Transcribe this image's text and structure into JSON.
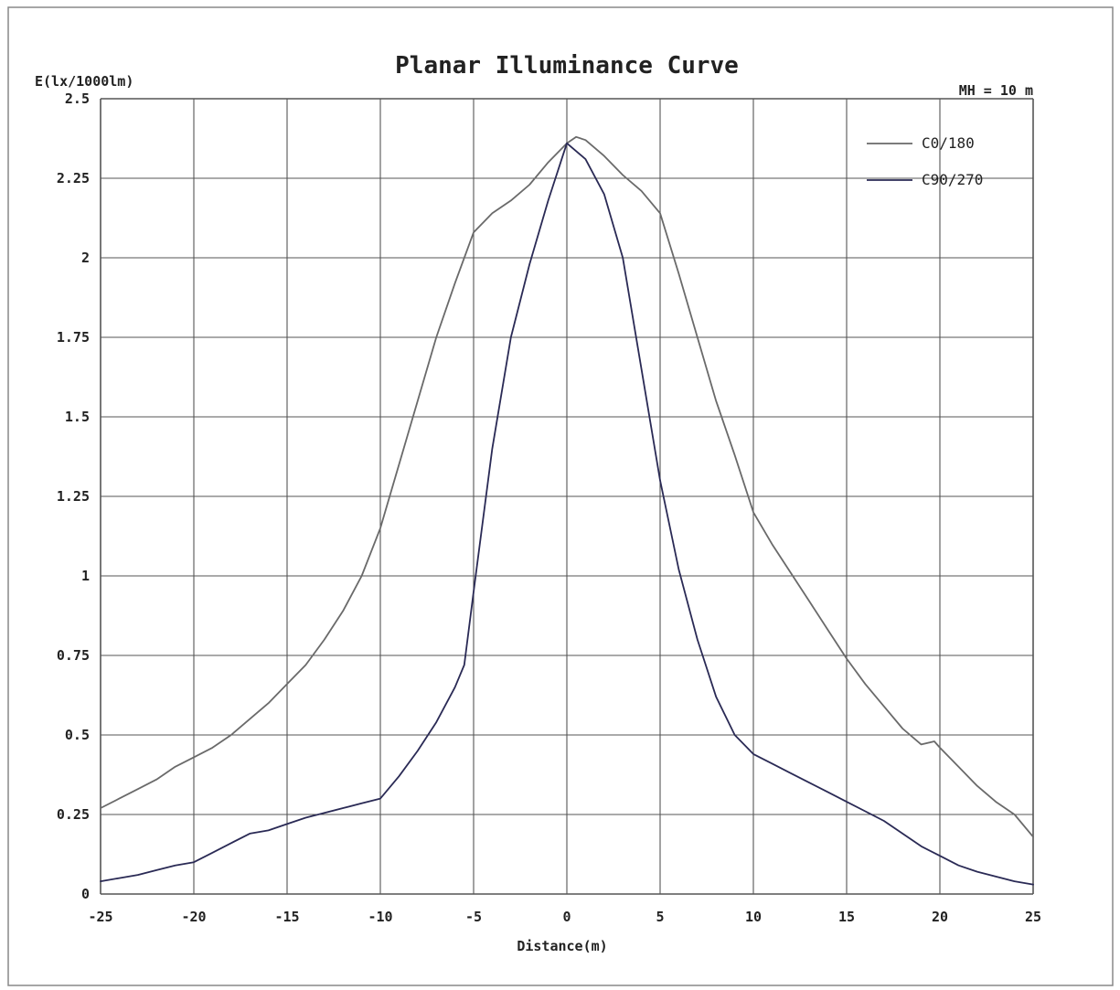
{
  "chart_data": {
    "type": "line",
    "title": "Planar Illuminance Curve",
    "subtitle": "MH = 10 m",
    "xlabel": "Distance(m)",
    "ylabel": "E(lx/1000lm)",
    "xlim": [
      -25,
      25
    ],
    "ylim": [
      0,
      2.5
    ],
    "x_ticks": [
      "-25",
      "-20",
      "-15",
      "-10",
      "-5",
      "0",
      "5",
      "10",
      "15",
      "20",
      "25"
    ],
    "y_ticks": [
      "0",
      "0.25",
      "0.5",
      "0.75",
      "1",
      "1.25",
      "1.5",
      "1.75",
      "2",
      "2.25",
      "2.5"
    ],
    "grid": true,
    "legend_position": "top-right",
    "series": [
      {
        "name": "C0/180",
        "color": "#6a6a6a",
        "x": [
          -25,
          -24,
          -23,
          -22,
          -21,
          -20,
          -19,
          -18,
          -17,
          -16,
          -15,
          -14,
          -13,
          -12,
          -11,
          -10,
          -9,
          -8,
          -7,
          -6,
          -5,
          -4,
          -3,
          -2,
          -1,
          0,
          0.5,
          1,
          2,
          3,
          4,
          5,
          6,
          7,
          8,
          9,
          10,
          11,
          12,
          13,
          14,
          15,
          16,
          17,
          18,
          19,
          19.7,
          20,
          21,
          22,
          23,
          24,
          25
        ],
        "y": [
          0.27,
          0.3,
          0.33,
          0.36,
          0.4,
          0.43,
          0.46,
          0.5,
          0.55,
          0.6,
          0.66,
          0.72,
          0.8,
          0.89,
          1.0,
          1.15,
          1.35,
          1.55,
          1.75,
          1.92,
          2.08,
          2.14,
          2.18,
          2.23,
          2.3,
          2.36,
          2.38,
          2.37,
          2.32,
          2.26,
          2.21,
          2.14,
          1.95,
          1.75,
          1.55,
          1.38,
          1.2,
          1.1,
          1.01,
          0.92,
          0.83,
          0.74,
          0.66,
          0.59,
          0.52,
          0.47,
          0.48,
          0.46,
          0.4,
          0.34,
          0.29,
          0.25,
          0.18
        ]
      },
      {
        "name": "C90/270",
        "color": "#2a2a55",
        "x": [
          -25,
          -24,
          -23,
          -22,
          -21,
          -20,
          -19,
          -18,
          -17,
          -16,
          -15,
          -14,
          -13,
          -12,
          -11,
          -10,
          -9,
          -8,
          -7,
          -6,
          -5.5,
          -5,
          -4,
          -3,
          -2,
          -1,
          0,
          1,
          2,
          3,
          4,
          5,
          6,
          7,
          8,
          9,
          10,
          11,
          12,
          13,
          14,
          15,
          16,
          17,
          18,
          19,
          20,
          21,
          22,
          23,
          24,
          25
        ],
        "y": [
          0.04,
          0.05,
          0.06,
          0.075,
          0.09,
          0.1,
          0.13,
          0.16,
          0.19,
          0.2,
          0.22,
          0.24,
          0.255,
          0.27,
          0.285,
          0.3,
          0.37,
          0.45,
          0.54,
          0.65,
          0.72,
          0.95,
          1.4,
          1.75,
          1.98,
          2.18,
          2.36,
          2.31,
          2.2,
          2.0,
          1.65,
          1.3,
          1.02,
          0.8,
          0.62,
          0.5,
          0.44,
          0.41,
          0.38,
          0.35,
          0.32,
          0.29,
          0.26,
          0.23,
          0.19,
          0.15,
          0.12,
          0.09,
          0.07,
          0.055,
          0.04,
          0.03
        ]
      }
    ]
  }
}
